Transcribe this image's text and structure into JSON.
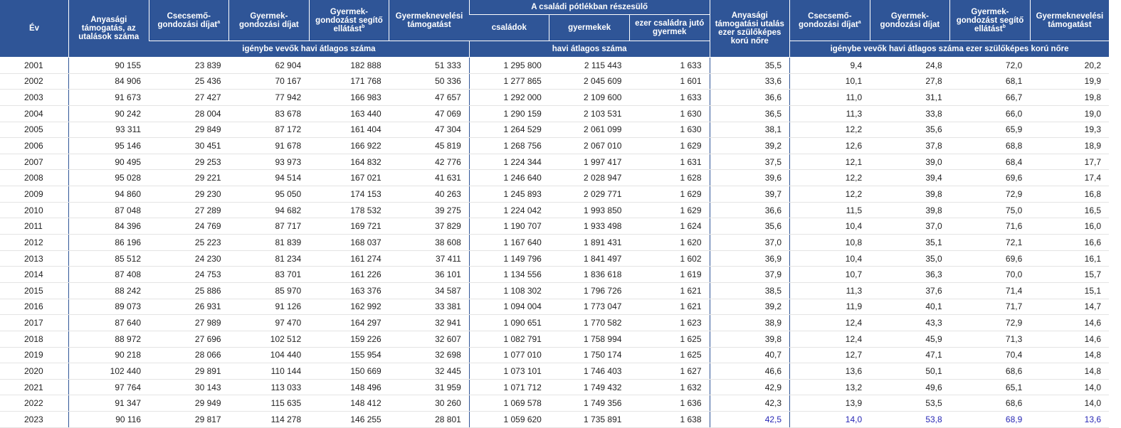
{
  "headers": {
    "year": "Év",
    "maternity_count": "Anyasági támogatás, az utalások száma",
    "infant_care_fee": "Csecsemő­gondozási díjat",
    "infant_care_fee_note": "a",
    "childcare_fee": "Gyermek­gondozási díjat",
    "childcare_allowance": "Gyermek­gondozást segítő ellátást",
    "childcare_allowance_note": "b",
    "child_raising_support": "Gyermeknevelési támogatást",
    "family_allowance_group": "A családi pótlékban részesülő",
    "families": "családok",
    "children": "gyermekek",
    "per_100_families": "ezer családra jutó gyermek",
    "maternity_rate": "Anyasági támogatási utalás ezer szülőképes korú nőre",
    "rate_infant_care_fee": "Csecsemő­gondozási díjat",
    "rate_infant_care_fee_note": "a",
    "rate_childcare_fee": "Gyermek­gondozási díjat",
    "rate_childcare_allowance": "Gyermek­gondozást segítő ellátást",
    "rate_childcare_allowance_note": "b",
    "rate_child_raising_support": "Gyermeknevelési támogatást",
    "sub_recipients": "igénybe vevők havi átlagos száma",
    "sub_monthly": "havi átlagos száma",
    "sub_rate": "igénybe vevők havi átlagos száma ezer szülőképes korú nőre"
  },
  "rows": [
    [
      "2001",
      "90 155",
      "23 839",
      "62 904",
      "182 888",
      "51 333",
      "1 295 800",
      "2 115 443",
      "1 633",
      "35,5",
      "9,4",
      "24,8",
      "72,0",
      "20,2"
    ],
    [
      "2002",
      "84 906",
      "25 436",
      "70 167",
      "171 768",
      "50 336",
      "1 277 865",
      "2 045 609",
      "1 601",
      "33,6",
      "10,1",
      "27,8",
      "68,1",
      "19,9"
    ],
    [
      "2003",
      "91 673",
      "27 427",
      "77 942",
      "166 983",
      "47 657",
      "1 292 000",
      "2 109 600",
      "1 633",
      "36,6",
      "11,0",
      "31,1",
      "66,7",
      "19,8"
    ],
    [
      "2004",
      "90 242",
      "28 004",
      "83 678",
      "163 440",
      "47 069",
      "1 290 159",
      "2 103 531",
      "1 630",
      "36,5",
      "11,3",
      "33,8",
      "66,0",
      "19,0"
    ],
    [
      "2005",
      "93 311",
      "29 849",
      "87 172",
      "161 404",
      "47 304",
      "1 264 529",
      "2 061 099",
      "1 630",
      "38,1",
      "12,2",
      "35,6",
      "65,9",
      "19,3"
    ],
    [
      "2006",
      "95 146",
      "30 451",
      "91 678",
      "166 922",
      "45 819",
      "1 268 756",
      "2 067 010",
      "1 629",
      "39,2",
      "12,6",
      "37,8",
      "68,8",
      "18,9"
    ],
    [
      "2007",
      "90 495",
      "29 253",
      "93 973",
      "164 832",
      "42 776",
      "1 224 344",
      "1 997 417",
      "1 631",
      "37,5",
      "12,1",
      "39,0",
      "68,4",
      "17,7"
    ],
    [
      "2008",
      "95 028",
      "29 221",
      "94 514",
      "167 021",
      "41 631",
      "1 246 640",
      "2 028 947",
      "1 628",
      "39,6",
      "12,2",
      "39,4",
      "69,6",
      "17,4"
    ],
    [
      "2009",
      "94 860",
      "29 230",
      "95 050",
      "174 153",
      "40 263",
      "1 245 893",
      "2 029 771",
      "1 629",
      "39,7",
      "12,2",
      "39,8",
      "72,9",
      "16,8"
    ],
    [
      "2010",
      "87 048",
      "27 289",
      "94 682",
      "178 532",
      "39 275",
      "1 224 042",
      "1 993 850",
      "1 629",
      "36,6",
      "11,5",
      "39,8",
      "75,0",
      "16,5"
    ],
    [
      "2011",
      "84 396",
      "24 769",
      "87 717",
      "169 721",
      "37 829",
      "1 190 707",
      "1 933 498",
      "1 624",
      "35,6",
      "10,4",
      "37,0",
      "71,6",
      "16,0"
    ],
    [
      "2012",
      "86 196",
      "25 223",
      "81 839",
      "168 037",
      "38 608",
      "1 167 640",
      "1 891 431",
      "1 620",
      "37,0",
      "10,8",
      "35,1",
      "72,1",
      "16,6"
    ],
    [
      "2013",
      "85 512",
      "24 230",
      "81 234",
      "161 274",
      "37 411",
      "1 149 796",
      "1 841 497",
      "1 602",
      "36,9",
      "10,4",
      "35,0",
      "69,6",
      "16,1"
    ],
    [
      "2014",
      "87 408",
      "24 753",
      "83 701",
      "161 226",
      "36 101",
      "1 134 556",
      "1 836 618",
      "1 619",
      "37,9",
      "10,7",
      "36,3",
      "70,0",
      "15,7"
    ],
    [
      "2015",
      "88 242",
      "25 886",
      "85 970",
      "163 376",
      "34 587",
      "1 108 302",
      "1 796 726",
      "1 621",
      "38,5",
      "11,3",
      "37,6",
      "71,4",
      "15,1"
    ],
    [
      "2016",
      "89 073",
      "26 931",
      "91 126",
      "162 992",
      "33 381",
      "1 094 004",
      "1 773 047",
      "1 621",
      "39,2",
      "11,9",
      "40,1",
      "71,7",
      "14,7"
    ],
    [
      "2017",
      "87 640",
      "27 989",
      "97 470",
      "164 297",
      "32 941",
      "1 090 651",
      "1 770 582",
      "1 623",
      "38,9",
      "12,4",
      "43,3",
      "72,9",
      "14,6"
    ],
    [
      "2018",
      "88 972",
      "27 696",
      "102 512",
      "159 226",
      "32 607",
      "1 082 791",
      "1 758 994",
      "1 625",
      "39,8",
      "12,4",
      "45,9",
      "71,3",
      "14,6"
    ],
    [
      "2019",
      "90 218",
      "28 066",
      "104 440",
      "155 954",
      "32 698",
      "1 077 010",
      "1 750 174",
      "1 625",
      "40,7",
      "12,7",
      "47,1",
      "70,4",
      "14,8"
    ],
    [
      "2020",
      "102 440",
      "29 891",
      "110 144",
      "150 669",
      "32 445",
      "1 073 101",
      "1 746 403",
      "1 627",
      "46,6",
      "13,6",
      "50,1",
      "68,6",
      "14,8"
    ],
    [
      "2021",
      "97 764",
      "30 143",
      "113 033",
      "148 496",
      "31 959",
      "1 071 712",
      "1 749 432",
      "1 632",
      "42,9",
      "13,2",
      "49,6",
      "65,1",
      "14,0"
    ],
    [
      "2022",
      "91 347",
      "29 949",
      "115 635",
      "148 412",
      "30 260",
      "1 069 578",
      "1 749 356",
      "1 636",
      "42,3",
      "13,9",
      "53,5",
      "68,6",
      "14,0"
    ],
    [
      "2023",
      "90 116",
      "29 817",
      "114 278",
      "146 255",
      "28 801",
      "1 059 620",
      "1 735 891",
      "1 638",
      "42,5",
      "14,0",
      "53,8",
      "68,9",
      "13,6"
    ]
  ],
  "highlight_color": "#2727b5",
  "header_color": "#2f5597"
}
